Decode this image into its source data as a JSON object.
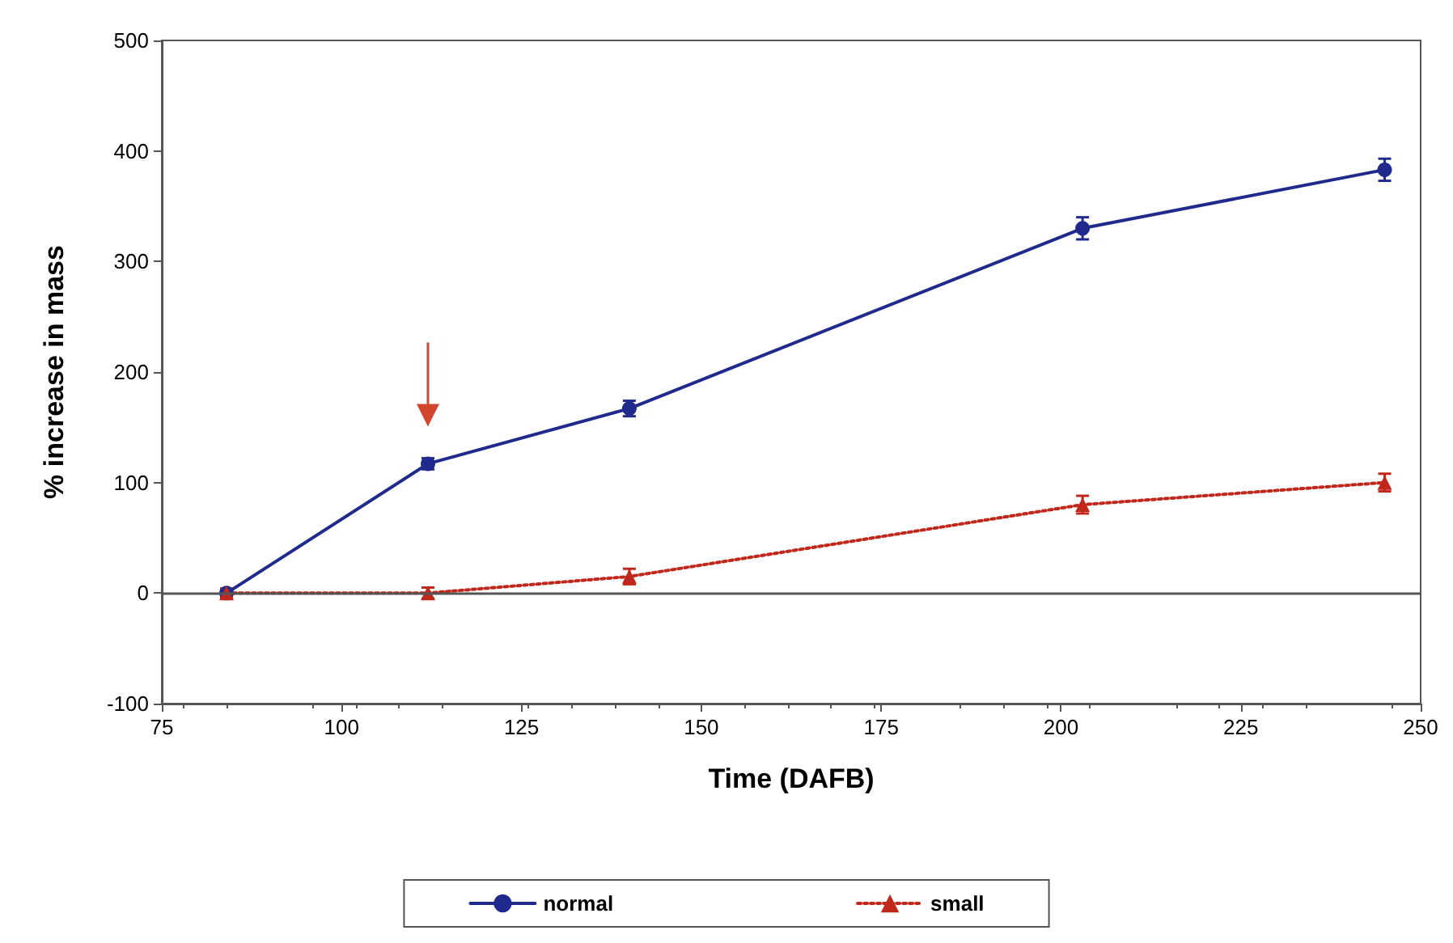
{
  "chart_data": {
    "type": "line",
    "xlabel": "Time (DAFB)",
    "ylabel": "% increase in mass",
    "x": [
      84,
      112,
      140,
      203,
      245
    ],
    "series": [
      {
        "name": "normal",
        "color": "#1f2a8c",
        "values": [
          0,
          117,
          167,
          330,
          383
        ],
        "errors": [
          4,
          5,
          7,
          10,
          10
        ],
        "marker": "circle",
        "line_style": "solid"
      },
      {
        "name": "small",
        "color": "#c0281c",
        "values": [
          0,
          0,
          15,
          80,
          100
        ],
        "errors": [
          4,
          5,
          7,
          8,
          8
        ],
        "marker": "triangle",
        "line_style": "dotted"
      }
    ],
    "xlim": [
      75,
      250
    ],
    "xticks": [
      75,
      100,
      125,
      150,
      175,
      200,
      225,
      250
    ],
    "ylim": [
      -100,
      500
    ],
    "yticks": [
      -100,
      0,
      100,
      200,
      300,
      400,
      500
    ],
    "ref_lines": [
      {
        "axis": "y",
        "value": 0,
        "color": "#555555"
      }
    ],
    "grid": false,
    "legend": "bottom"
  }
}
